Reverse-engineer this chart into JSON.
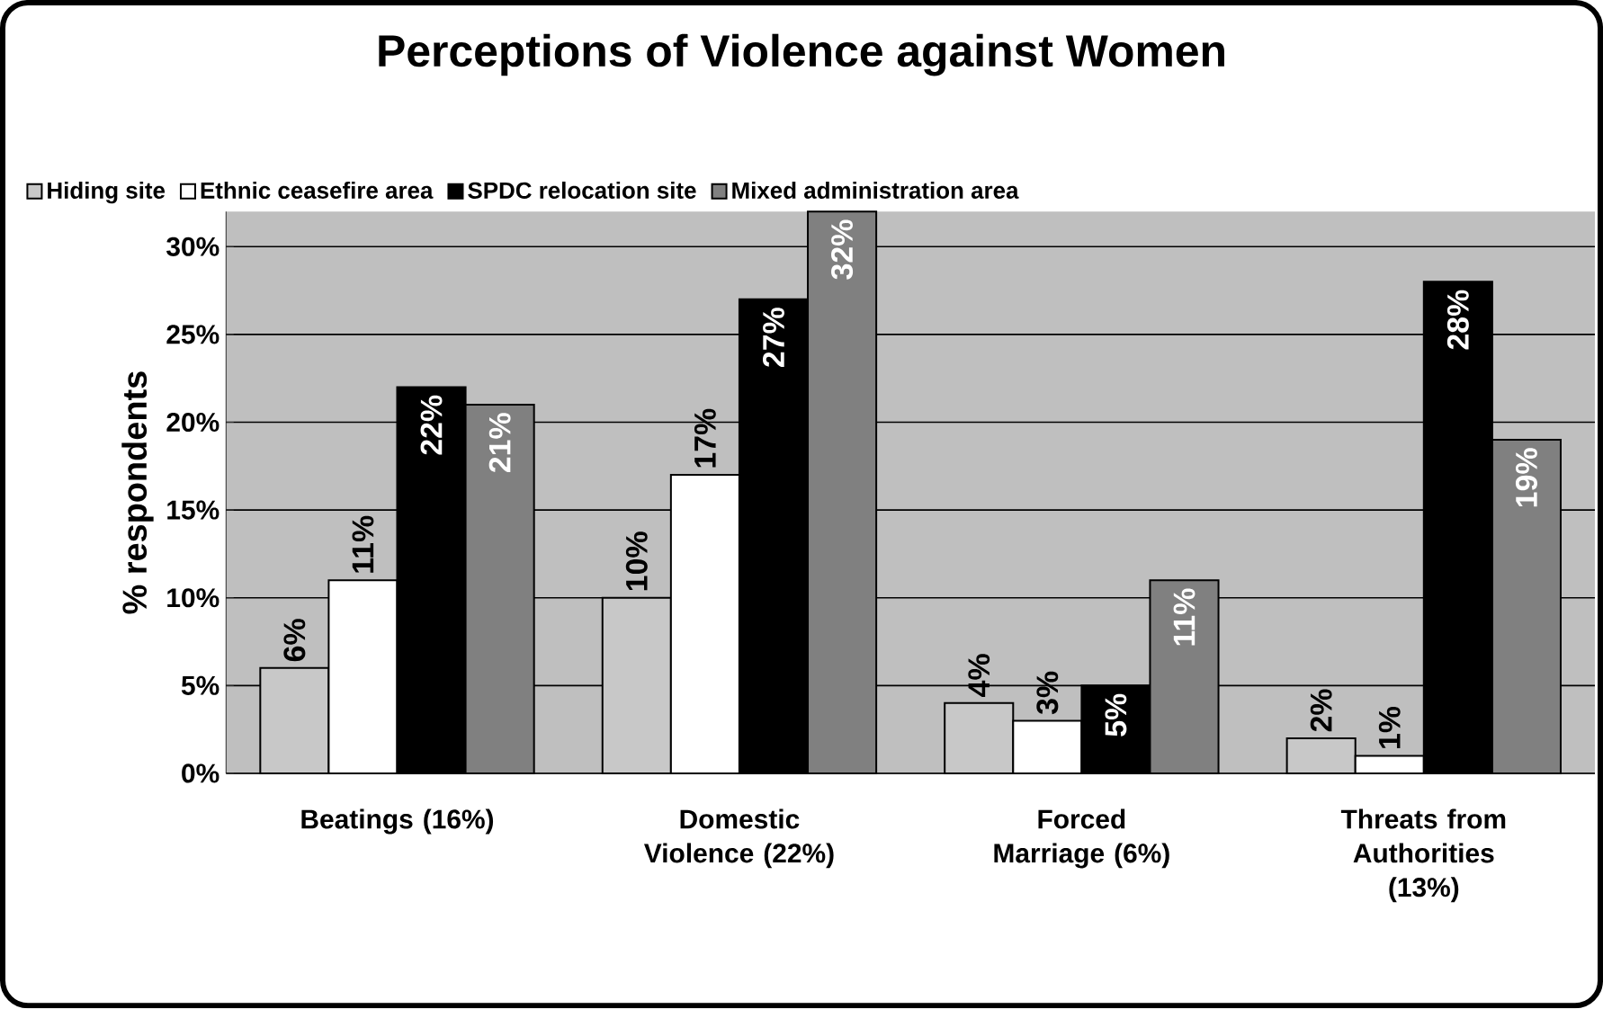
{
  "chart_data": {
    "type": "bar",
    "title": "Perceptions of Violence against Women",
    "ylabel": "% respondents",
    "categories": [
      "Beatings (16%)",
      "Domestic Violence (22%)",
      "Forced Marriage (6%)",
      "Threats from Authorities (13%)"
    ],
    "series": [
      {
        "name": "Hiding site",
        "color": "#c8c8c8",
        "values": [
          6,
          10,
          4,
          2
        ],
        "value_labels": [
          "6%",
          "10%",
          "4%",
          "2%"
        ]
      },
      {
        "name": "Ethnic ceasefire area",
        "color": "#ffffff",
        "values": [
          11,
          17,
          3,
          1
        ],
        "value_labels": [
          "11%",
          "17%",
          "3%",
          "1%"
        ]
      },
      {
        "name": "SPDC relocation site",
        "color": "#000000",
        "values": [
          22,
          27,
          5,
          28
        ],
        "value_labels": [
          "22%",
          "27%",
          "5%",
          "28%"
        ]
      },
      {
        "name": "Mixed administration area",
        "color": "#808080",
        "values": [
          21,
          32,
          11,
          19
        ],
        "value_labels": [
          "21%",
          "32%",
          "11%",
          "19%"
        ]
      }
    ],
    "ylim": [
      0,
      32
    ],
    "yticks": [
      {
        "value": 0,
        "label": "0%"
      },
      {
        "value": 5,
        "label": "5%"
      },
      {
        "value": 10,
        "label": "10%"
      },
      {
        "value": 15,
        "label": "15%"
      },
      {
        "value": 20,
        "label": "20%"
      },
      {
        "value": 25,
        "label": "25%"
      },
      {
        "value": 30,
        "label": "30%"
      }
    ],
    "grid": "y",
    "legend": "top"
  }
}
